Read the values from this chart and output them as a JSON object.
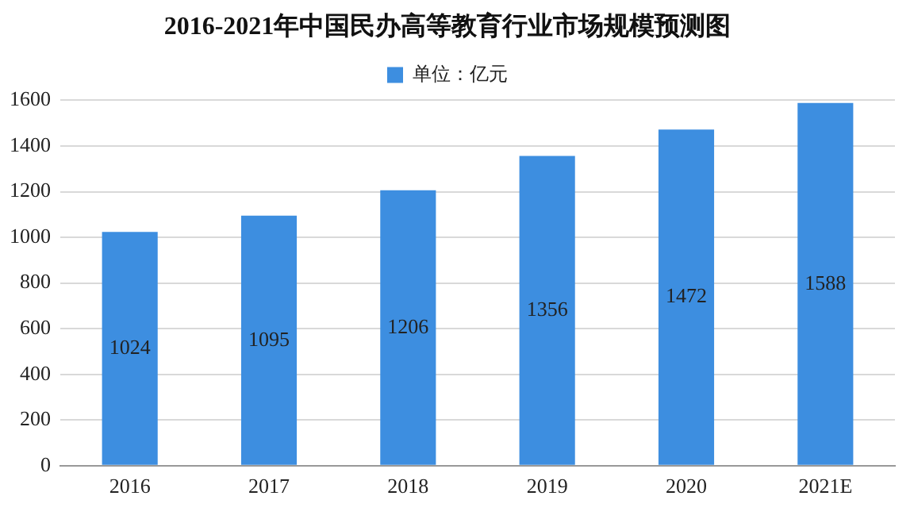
{
  "chart_data": {
    "type": "bar",
    "title": "2016-2021年中国民办高等教育行业市场规模预测图",
    "categories": [
      "2016",
      "2017",
      "2018",
      "2019",
      "2020",
      "2021E"
    ],
    "series": [
      {
        "name": "单位：亿元",
        "color": "#3d8ee0",
        "values": [
          1024,
          1095,
          1206,
          1356,
          1472,
          1588
        ]
      }
    ],
    "ylim": [
      0,
      1600
    ],
    "yticks": [
      0,
      200,
      400,
      600,
      800,
      1000,
      1200,
      1400,
      1600
    ],
    "grid": "y",
    "legend": "top",
    "data_labels": true
  }
}
